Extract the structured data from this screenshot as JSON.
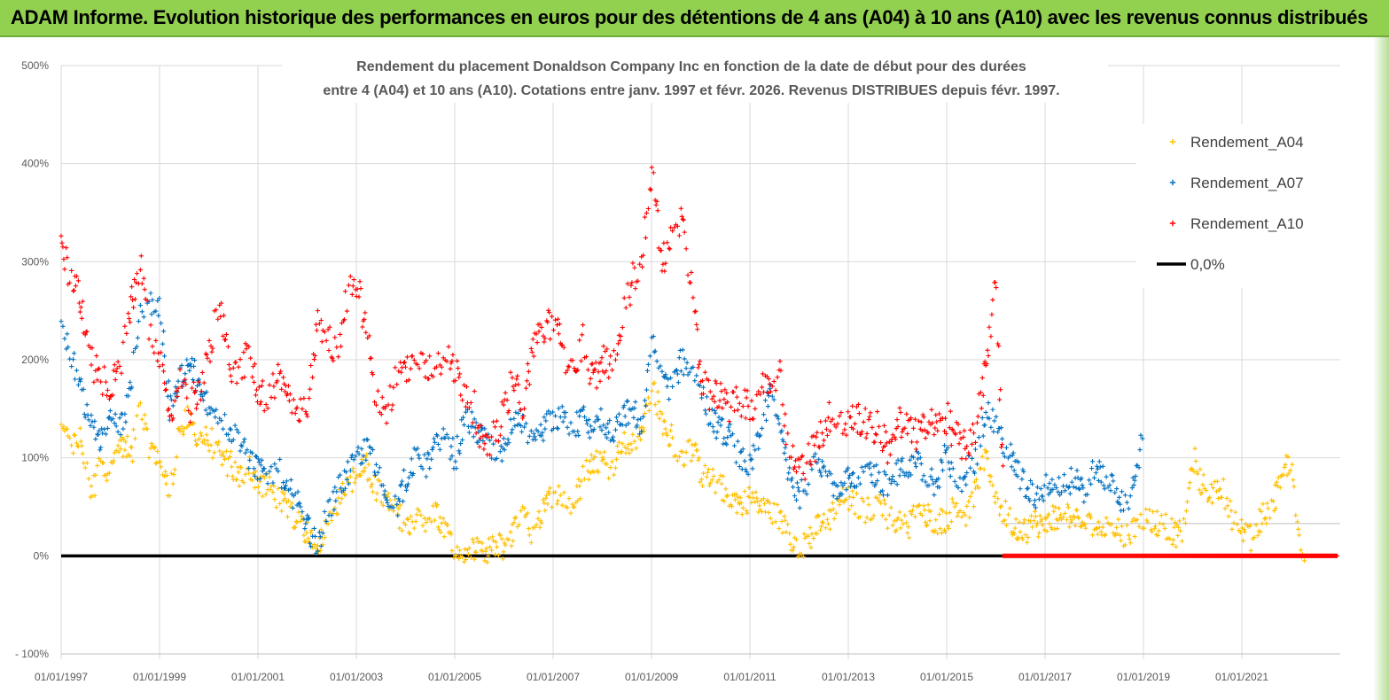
{
  "banner": {
    "title": "ADAM Informe. Evolution historique des performances en euros pour des détentions de 4 ans (A04) à 10 ans (A10) avec les revenus connus distribués"
  },
  "chart_data": {
    "type": "scatter",
    "title_line1": "Rendement du placement Donaldson Company Inc en fonction de la date de début pour des durées",
    "title_line2": "entre 4 (A04) et 10 ans (A10).  Cotations entre janv. 1997 et févr. 2026. Revenus DISTRIBUES depuis févr. 1997.",
    "ylim": [
      -100,
      500
    ],
    "y_ticks": [
      -100,
      0,
      100,
      200,
      300,
      400,
      500
    ],
    "y_tick_labels": [
      "- 100%",
      "0%",
      "100%",
      "200%",
      "300%",
      "400%",
      "500%"
    ],
    "x_tick_labels": [
      "01/01/1997",
      "01/01/1999",
      "01/01/2001",
      "01/01/2003",
      "01/01/2005",
      "01/01/2007",
      "01/01/2009",
      "01/01/2011",
      "01/01/2013",
      "01/01/2015",
      "01/01/2017",
      "01/01/2019",
      "01/01/2021"
    ],
    "x_tick_years": [
      1997,
      1999,
      2001,
      2003,
      2005,
      2007,
      2009,
      2011,
      2013,
      2015,
      2017,
      2019,
      2021
    ],
    "xlim_years": [
      1997,
      2023
    ],
    "grid": "horizontal",
    "legend_position": "top-right",
    "colors": {
      "A04": "#ffc000",
      "A07": "#0070c0",
      "A10": "#ff0000",
      "zero": "#000000"
    },
    "series": [
      {
        "name": "Rendement_A04",
        "key": "A04",
        "x": [
          1997.0,
          1997.2,
          1997.4,
          1997.6,
          1997.8,
          1998.0,
          1998.2,
          1998.4,
          1998.6,
          1998.8,
          1999.0,
          1999.2,
          1999.4,
          1999.6,
          1999.8,
          2000.0,
          2000.2,
          2000.4,
          2000.6,
          2000.8,
          2001.0,
          2001.2,
          2001.4,
          2001.6,
          2001.8,
          2002.0,
          2002.2,
          2002.4,
          2002.6,
          2002.8,
          2003.0,
          2003.2,
          2003.4,
          2003.6,
          2003.8,
          2004.0,
          2004.2,
          2004.4,
          2004.6,
          2004.8,
          2005.0,
          2005.2,
          2005.4,
          2005.6,
          2005.8,
          2006.0,
          2006.2,
          2006.4,
          2006.6,
          2006.8,
          2007.0,
          2007.2,
          2007.4,
          2007.6,
          2007.8,
          2008.0,
          2008.2,
          2008.4,
          2008.6,
          2008.8,
          2009.0,
          2009.2,
          2009.4,
          2009.6,
          2009.8,
          2010.0,
          2010.2,
          2010.4,
          2010.6,
          2010.8,
          2011.0,
          2011.2,
          2011.4,
          2011.6,
          2011.8,
          2012.0,
          2012.2,
          2012.4,
          2012.6,
          2012.8,
          2013.0,
          2013.2,
          2013.4,
          2013.6,
          2013.8,
          2014.0,
          2014.2,
          2014.4,
          2014.6,
          2014.8,
          2015.0,
          2015.2,
          2015.4,
          2015.6,
          2015.8,
          2016.0,
          2016.2,
          2016.4,
          2016.6,
          2016.8,
          2017.0,
          2017.2,
          2017.4,
          2017.6,
          2017.8,
          2018.0,
          2018.2,
          2018.4,
          2018.6,
          2018.8,
          2019.0,
          2019.2,
          2019.4,
          2019.6,
          2019.8,
          2020.0,
          2020.2,
          2020.4,
          2020.6,
          2020.8,
          2021.0,
          2021.2,
          2021.4,
          2021.6,
          2021.8,
          2022.0,
          2022.2
        ],
        "y": [
          130,
          110,
          120,
          60,
          100,
          85,
          120,
          100,
          150,
          110,
          100,
          60,
          130,
          140,
          120,
          120,
          100,
          95,
          80,
          90,
          75,
          70,
          60,
          50,
          35,
          25,
          15,
          30,
          55,
          75,
          80,
          90,
          70,
          55,
          45,
          35,
          40,
          30,
          45,
          25,
          5,
          0,
          5,
          0,
          10,
          10,
          30,
          40,
          20,
          45,
          65,
          60,
          50,
          80,
          100,
          95,
          90,
          120,
          110,
          130,
          170,
          140,
          120,
          100,
          110,
          85,
          75,
          70,
          60,
          55,
          60,
          55,
          45,
          40,
          20,
          0,
          20,
          30,
          40,
          55,
          60,
          50,
          45,
          55,
          40,
          35,
          30,
          45,
          40,
          35,
          40,
          55,
          40,
          70,
          100,
          60,
          40,
          30,
          25,
          35,
          30,
          40,
          45,
          35,
          30,
          35,
          25,
          30,
          20,
          25,
          40,
          35,
          30,
          25,
          20,
          100,
          70,
          65,
          70,
          40,
          25,
          15,
          40,
          50,
          85,
          100,
          0
        ]
      },
      {
        "name": "Rendement_A07",
        "key": "A07",
        "x": [
          1997.0,
          1997.2,
          1997.4,
          1997.6,
          1997.8,
          1998.0,
          1998.2,
          1998.4,
          1998.6,
          1998.8,
          1999.0,
          1999.2,
          1999.4,
          1999.6,
          1999.8,
          2000.0,
          2000.2,
          2000.4,
          2000.6,
          2000.8,
          2001.0,
          2001.2,
          2001.4,
          2001.6,
          2001.8,
          2002.0,
          2002.2,
          2002.4,
          2002.6,
          2002.8,
          2003.0,
          2003.2,
          2003.4,
          2003.6,
          2003.8,
          2004.0,
          2004.2,
          2004.4,
          2004.6,
          2004.8,
          2005.0,
          2005.2,
          2005.4,
          2005.6,
          2005.8,
          2006.0,
          2006.2,
          2006.4,
          2006.6,
          2006.8,
          2007.0,
          2007.2,
          2007.4,
          2007.6,
          2007.8,
          2008.0,
          2008.2,
          2008.4,
          2008.6,
          2008.8,
          2009.0,
          2009.2,
          2009.4,
          2009.6,
          2009.8,
          2010.0,
          2010.2,
          2010.4,
          2010.6,
          2010.8,
          2011.0,
          2011.2,
          2011.4,
          2011.6,
          2011.8,
          2012.0,
          2012.2,
          2012.4,
          2012.6,
          2012.8,
          2013.0,
          2013.2,
          2013.4,
          2013.6,
          2013.8,
          2014.0,
          2014.2,
          2014.4,
          2014.6,
          2014.8,
          2015.0,
          2015.2,
          2015.4,
          2015.6,
          2015.8,
          2016.0,
          2016.2,
          2016.4,
          2016.6,
          2016.8,
          2017.0,
          2017.2,
          2017.4,
          2017.6,
          2017.8,
          2018.0,
          2018.2,
          2018.4,
          2018.6,
          2018.8,
          2019.0
        ],
        "y": [
          250,
          200,
          170,
          130,
          120,
          140,
          130,
          170,
          250,
          260,
          250,
          150,
          180,
          200,
          170,
          150,
          140,
          130,
          120,
          100,
          90,
          80,
          90,
          70,
          50,
          30,
          10,
          40,
          70,
          80,
          100,
          110,
          90,
          60,
          50,
          80,
          100,
          90,
          110,
          120,
          100,
          140,
          130,
          120,
          100,
          110,
          140,
          130,
          110,
          130,
          140,
          140,
          130,
          140,
          130,
          140,
          120,
          140,
          150,
          130,
          220,
          180,
          170,
          200,
          190,
          170,
          140,
          130,
          120,
          100,
          90,
          120,
          170,
          130,
          80,
          60,
          80,
          100,
          80,
          70,
          80,
          70,
          90,
          80,
          70,
          90,
          80,
          100,
          80,
          70,
          110,
          60,
          90,
          100,
          150,
          130,
          110,
          90,
          70,
          60,
          70,
          80,
          70,
          80,
          60,
          90,
          80,
          70,
          50,
          70,
          130
        ]
      },
      {
        "name": "Rendement_A10",
        "key": "A10",
        "x": [
          1997.0,
          1997.2,
          1997.4,
          1997.6,
          1997.8,
          1998.0,
          1998.2,
          1998.4,
          1998.6,
          1998.8,
          1999.0,
          1999.2,
          1999.4,
          1999.6,
          1999.8,
          2000.0,
          2000.2,
          2000.4,
          2000.6,
          2000.8,
          2001.0,
          2001.2,
          2001.4,
          2001.6,
          2001.8,
          2002.0,
          2002.2,
          2002.4,
          2002.6,
          2002.8,
          2003.0,
          2003.2,
          2003.4,
          2003.6,
          2003.8,
          2004.0,
          2004.2,
          2004.4,
          2004.6,
          2004.8,
          2005.0,
          2005.2,
          2005.4,
          2005.6,
          2005.8,
          2006.0,
          2006.2,
          2006.4,
          2006.6,
          2006.8,
          2007.0,
          2007.2,
          2007.4,
          2007.6,
          2007.8,
          2008.0,
          2008.2,
          2008.4,
          2008.6,
          2008.8,
          2009.0,
          2009.2,
          2009.4,
          2009.6,
          2009.8,
          2010.0,
          2010.2,
          2010.4,
          2010.6,
          2010.8,
          2011.0,
          2011.2,
          2011.4,
          2011.6,
          2011.8,
          2012.0,
          2012.2,
          2012.4,
          2012.6,
          2012.8,
          2013.0,
          2013.2,
          2013.4,
          2013.6,
          2013.8,
          2014.0,
          2014.2,
          2014.4,
          2014.6,
          2014.8,
          2015.0,
          2015.2,
          2015.4,
          2015.6,
          2015.8,
          2016.0,
          2016.2
        ],
        "y": [
          320,
          280,
          260,
          200,
          180,
          170,
          190,
          250,
          300,
          230,
          200,
          130,
          180,
          150,
          170,
          200,
          260,
          200,
          180,
          210,
          170,
          150,
          190,
          160,
          150,
          140,
          240,
          220,
          210,
          260,
          280,
          230,
          160,
          140,
          180,
          190,
          200,
          190,
          195,
          200,
          190,
          170,
          150,
          110,
          120,
          150,
          180,
          150,
          220,
          230,
          240,
          210,
          190,
          220,
          180,
          200,
          190,
          240,
          280,
          300,
          400,
          300,
          320,
          340,
          280,
          180,
          160,
          170,
          150,
          160,
          150,
          170,
          180,
          190,
          100,
          90,
          100,
          120,
          140,
          130,
          140,
          140,
          130,
          130,
          110,
          140,
          130,
          120,
          140,
          130,
          140,
          120,
          110,
          130,
          200,
          280,
          0
        ]
      }
    ],
    "a10_zero_from_year": 2016.15,
    "a04_zero_tail_from_year": 2022.3,
    "zero_line_label": "0,0%",
    "zero_line_end_year": 2016.15
  }
}
